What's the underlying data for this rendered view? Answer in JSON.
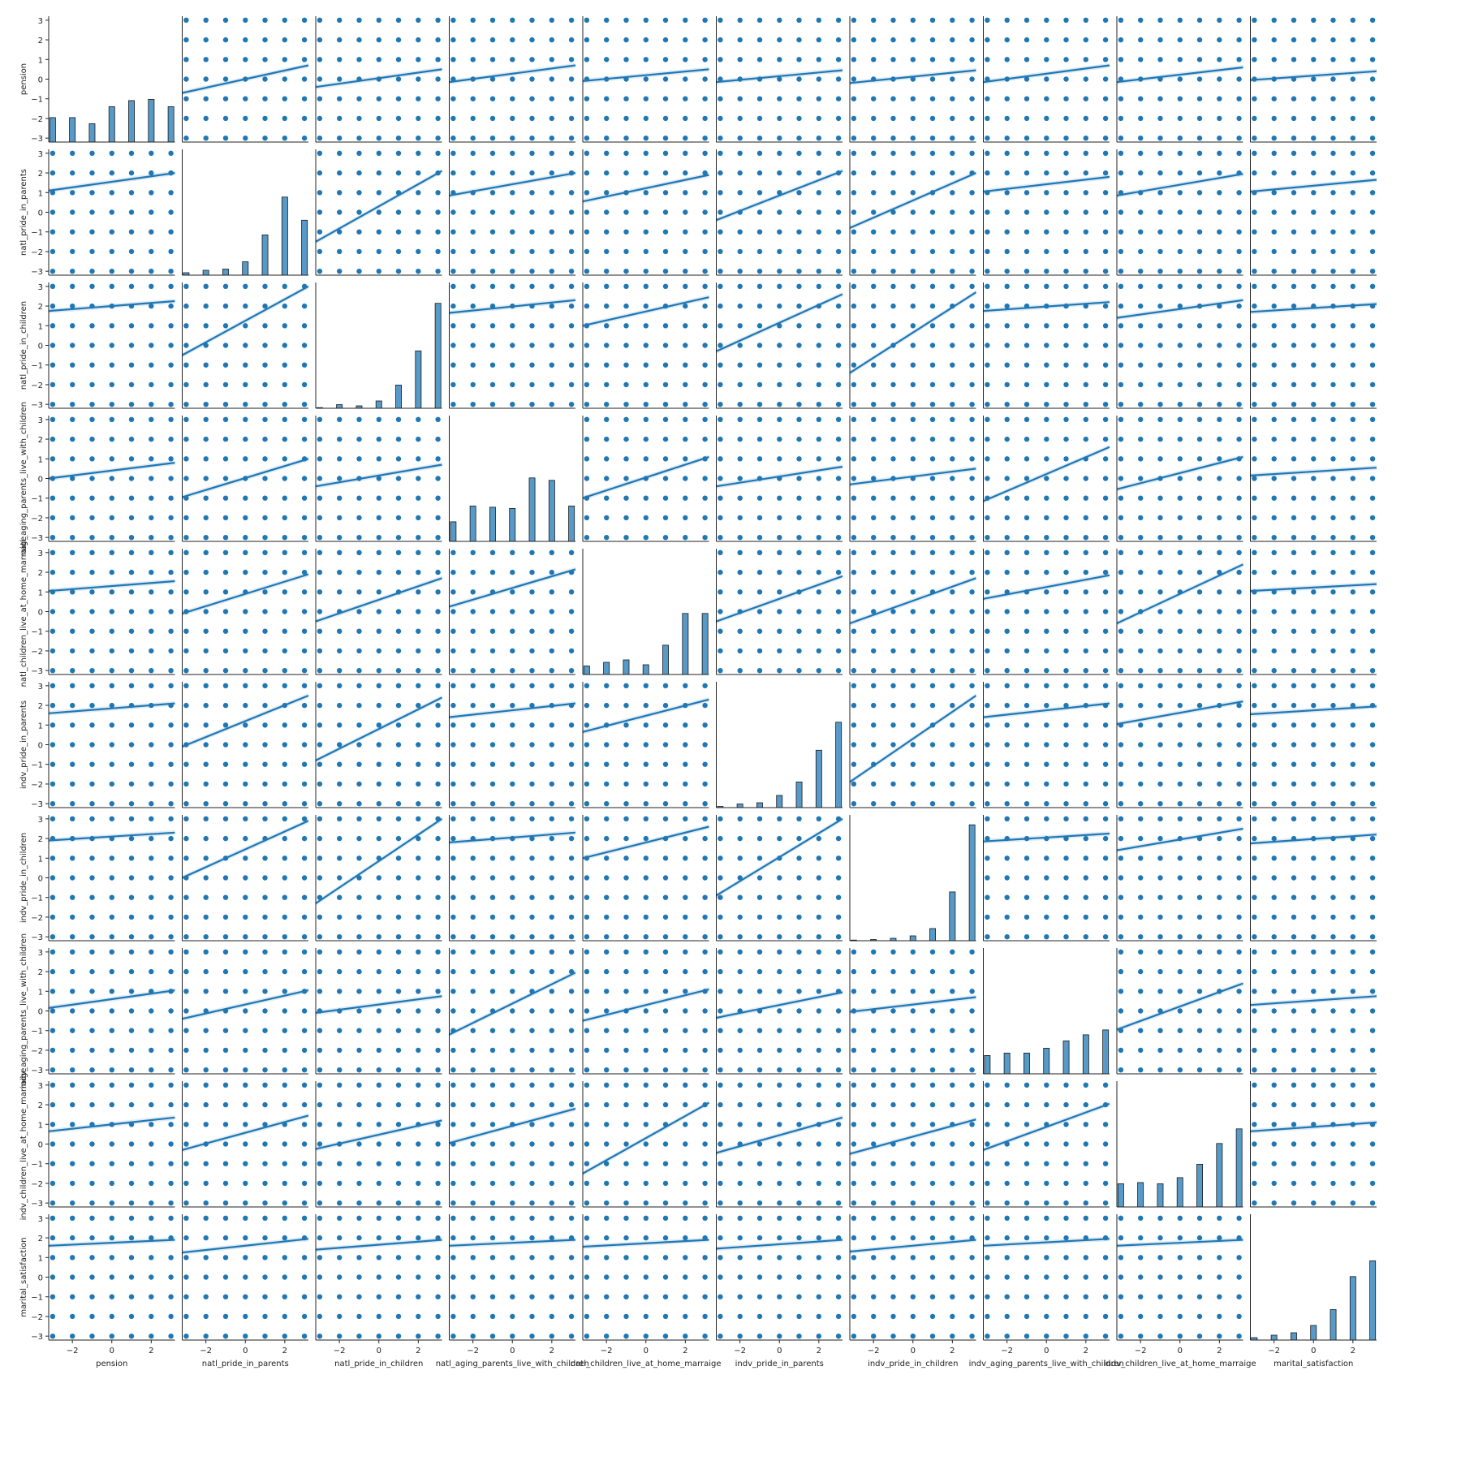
{
  "chart_data": {
    "type": "scatter",
    "kind": "pairplot-with-regression",
    "variables": [
      "pension",
      "natl_pride_in_parents",
      "natl_pride_in_children",
      "natl_aging_parents_live_with_children",
      "natl_children_live_at_home_marraige",
      "indv_pride_in_parents",
      "indv_pride_in_children",
      "indv_aging_parents_live_with_children",
      "indv_children_live_at_home_marraige",
      "marital_satisfaction"
    ],
    "axis_range": [
      -3.2,
      3.2
    ],
    "y_ticks": [
      -3,
      -2,
      -1,
      0,
      1,
      2,
      3
    ],
    "x_ticks": [
      -2,
      0,
      2
    ],
    "point_values": [
      -3,
      -2,
      -1,
      0,
      1,
      2,
      3
    ],
    "diagonal": "histogram",
    "grid": false,
    "legend": "none",
    "color": "#1f77b4",
    "histograms": [
      {
        "variable": "pension",
        "bins": [
          -3,
          -2,
          -1,
          0,
          1,
          2,
          3
        ],
        "relative_counts": [
          0.2,
          0.2,
          0.15,
          0.29,
          0.34,
          0.35,
          0.29
        ]
      },
      {
        "variable": "natl_pride_in_parents",
        "bins": [
          -3,
          -2,
          -1,
          0,
          1,
          2,
          3
        ],
        "relative_counts": [
          0.02,
          0.04,
          0.05,
          0.11,
          0.33,
          0.64,
          0.45
        ]
      },
      {
        "variable": "natl_pride_in_children",
        "bins": [
          -3,
          -2,
          -1,
          0,
          1,
          2,
          3
        ],
        "relative_counts": [
          0.005,
          0.03,
          0.02,
          0.06,
          0.19,
          0.47,
          0.86
        ]
      },
      {
        "variable": "natl_aging_parents_live_with_children",
        "bins": [
          -3,
          -2,
          -1,
          0,
          1,
          2,
          3
        ],
        "relative_counts": [
          0.16,
          0.29,
          0.28,
          0.27,
          0.52,
          0.5,
          0.29
        ]
      },
      {
        "variable": "natl_children_live_at_home_marraige",
        "bins": [
          -3,
          -2,
          -1,
          0,
          1,
          2,
          3
        ],
        "relative_counts": [
          0.07,
          0.1,
          0.12,
          0.08,
          0.24,
          0.5,
          0.5
        ]
      },
      {
        "variable": "indv_pride_in_parents",
        "bins": [
          -3,
          -2,
          -1,
          0,
          1,
          2,
          3
        ],
        "relative_counts": [
          0.01,
          0.03,
          0.04,
          0.1,
          0.21,
          0.47,
          0.7
        ]
      },
      {
        "variable": "indv_pride_in_children",
        "bins": [
          -3,
          -2,
          -1,
          0,
          1,
          2,
          3
        ],
        "relative_counts": [
          0.005,
          0.01,
          0.02,
          0.04,
          0.1,
          0.4,
          0.95
        ]
      },
      {
        "variable": "indv_aging_parents_live_with_children",
        "bins": [
          -3,
          -2,
          -1,
          0,
          1,
          2,
          3
        ],
        "relative_counts": [
          0.15,
          0.17,
          0.17,
          0.21,
          0.27,
          0.32,
          0.36
        ]
      },
      {
        "variable": "indv_children_live_at_home_marraige",
        "bins": [
          -3,
          -2,
          -1,
          0,
          1,
          2,
          3
        ],
        "relative_counts": [
          0.19,
          0.2,
          0.19,
          0.24,
          0.35,
          0.52,
          0.64
        ]
      },
      {
        "variable": "marital_satisfaction",
        "bins": [
          -3,
          -2,
          -1,
          0,
          1,
          2,
          3
        ],
        "relative_counts": [
          0.02,
          0.04,
          0.06,
          0.12,
          0.25,
          0.52,
          0.65
        ]
      }
    ],
    "regression_lines": [
      [
        null,
        [
          -0.7,
          0.7
        ],
        [
          -0.4,
          0.5
        ],
        [
          -0.15,
          0.7
        ],
        [
          -0.1,
          0.5
        ],
        [
          -0.15,
          0.45
        ],
        [
          -0.2,
          0.45
        ],
        [
          -0.15,
          0.7
        ],
        [
          -0.15,
          0.6
        ],
        [
          -0.05,
          0.4
        ]
      ],
      [
        [
          1.1,
          2.0
        ],
        null,
        [
          -1.5,
          2.1
        ],
        [
          0.85,
          2.0
        ],
        [
          0.55,
          1.9
        ],
        [
          -0.4,
          2.1
        ],
        [
          -0.8,
          2.0
        ],
        [
          1.05,
          1.8
        ],
        [
          0.85,
          1.95
        ],
        [
          1.05,
          1.65
        ]
      ],
      [
        [
          1.75,
          2.25
        ],
        [
          -0.5,
          3.0
        ],
        null,
        [
          1.65,
          2.3
        ],
        [
          1.0,
          2.45
        ],
        [
          -0.3,
          2.6
        ],
        [
          -1.4,
          2.7
        ],
        [
          1.75,
          2.2
        ],
        [
          1.4,
          2.3
        ],
        [
          1.7,
          2.1
        ]
      ],
      [
        [
          0.0,
          0.8
        ],
        [
          -0.95,
          1.0
        ],
        [
          -0.4,
          0.7
        ],
        null,
        [
          -1.0,
          1.1
        ],
        [
          -0.4,
          0.6
        ],
        [
          -0.3,
          0.5
        ],
        [
          -1.15,
          1.6
        ],
        [
          -0.55,
          1.1
        ],
        [
          0.15,
          0.55
        ]
      ],
      [
        [
          1.05,
          1.55
        ],
        [
          -0.1,
          1.9
        ],
        [
          -0.5,
          1.7
        ],
        [
          0.25,
          2.15
        ],
        null,
        [
          -0.5,
          1.8
        ],
        [
          -0.6,
          1.7
        ],
        [
          0.65,
          1.85
        ],
        [
          -0.6,
          2.4
        ],
        [
          1.05,
          1.4
        ]
      ],
      [
        [
          1.6,
          2.1
        ],
        [
          -0.1,
          2.5
        ],
        [
          -0.8,
          2.4
        ],
        [
          1.4,
          2.1
        ],
        [
          0.65,
          2.3
        ],
        null,
        [
          -1.9,
          2.5
        ],
        [
          1.4,
          2.1
        ],
        [
          1.05,
          2.2
        ],
        [
          1.55,
          1.95
        ]
      ],
      [
        [
          1.9,
          2.3
        ],
        [
          0.0,
          2.9
        ],
        [
          -1.3,
          3.0
        ],
        [
          1.8,
          2.3
        ],
        [
          1.0,
          2.6
        ],
        [
          -0.9,
          3.0
        ],
        null,
        [
          1.85,
          2.25
        ],
        [
          1.4,
          2.5
        ],
        [
          1.75,
          2.2
        ]
      ],
      [
        [
          0.15,
          1.05
        ],
        [
          -0.4,
          1.05
        ],
        [
          -0.1,
          0.75
        ],
        [
          -1.2,
          1.95
        ],
        [
          -0.5,
          1.1
        ],
        [
          -0.35,
          0.95
        ],
        [
          -0.05,
          0.7
        ],
        null,
        [
          -0.95,
          1.4
        ],
        [
          0.3,
          0.75
        ]
      ],
      [
        [
          0.65,
          1.35
        ],
        [
          -0.3,
          1.45
        ],
        [
          -0.25,
          1.2
        ],
        [
          0.05,
          1.8
        ],
        [
          -1.5,
          2.1
        ],
        [
          -0.45,
          1.35
        ],
        [
          -0.5,
          1.25
        ],
        [
          -0.3,
          2.05
        ],
        null,
        [
          0.65,
          1.1
        ]
      ],
      [
        [
          1.6,
          1.9
        ],
        [
          1.25,
          1.95
        ],
        [
          1.4,
          1.9
        ],
        [
          1.6,
          1.9
        ],
        [
          1.55,
          1.9
        ],
        [
          1.45,
          1.9
        ],
        [
          1.3,
          1.9
        ],
        [
          1.6,
          1.95
        ],
        [
          1.6,
          1.9
        ],
        null
      ]
    ]
  }
}
